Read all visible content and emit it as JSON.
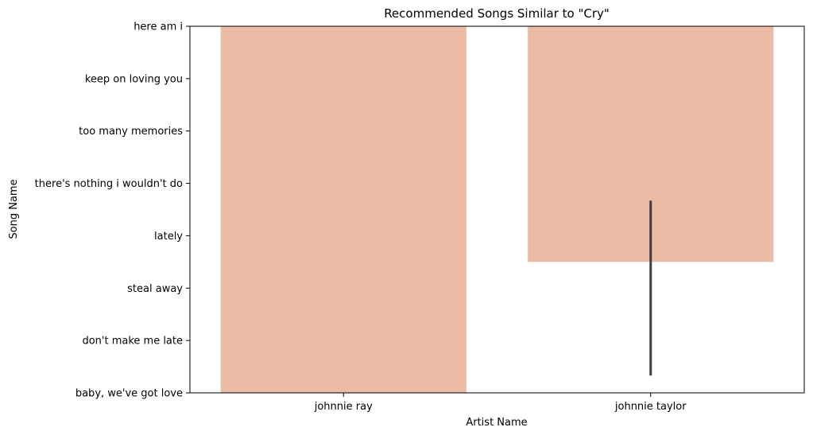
{
  "chart_data": {
    "type": "bar",
    "title": "Recommended Songs Similar to \"Cry\"",
    "xlabel": "Artist Name",
    "ylabel": "Song Name",
    "categories": [
      "johnnie ray",
      "johnnie taylor"
    ],
    "y_categories": [
      "baby, we've got love",
      "don't make me late",
      "steal away",
      "lately",
      "there's nothing i wouldn't do",
      "too many memories",
      "keep on loving you",
      "here am i"
    ],
    "values": [
      0,
      2.5
    ],
    "error_bars": [
      null,
      [
        0.33,
        3.67
      ]
    ],
    "y_range": [
      0,
      7
    ],
    "grid": false,
    "bar_color": "#ebbba5",
    "error_color": "#3f3f3f"
  }
}
